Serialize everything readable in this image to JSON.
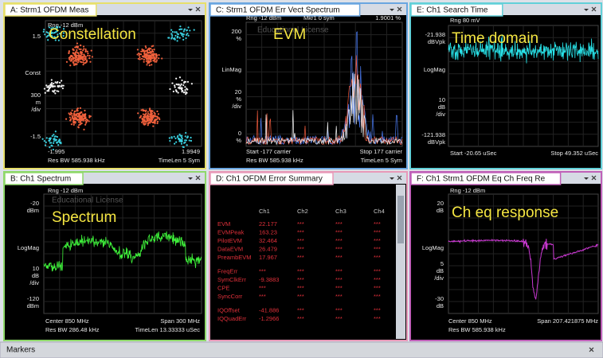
{
  "panels": {
    "a": {
      "title": "A: Strm1 OFDM Meas",
      "overlay": "Constellation",
      "labels": [
        "Rng -12 dBm",
        "1.5",
        "Const",
        "300",
        "m",
        "/div",
        "-1.5",
        "-1.995",
        "1.9949",
        "Res BW 585.938 kHz",
        "TimeLen 5  Sym"
      ]
    },
    "c": {
      "title": "C: Strm1 OFDM Err Vect Spectrum",
      "overlay": "EVM",
      "watermark": "Educational License",
      "labels": [
        "Rng -12 dBm",
        "Mkr1  0 sym",
        "1.9001 %",
        "200",
        "%",
        "LinMag",
        "20",
        "%",
        "/div",
        "0",
        "%",
        "Start -177  carrier",
        "Stop 177  carrier",
        "Res BW 585.938 kHz",
        "TimeLen 5  Sym"
      ]
    },
    "e": {
      "title": "E: Ch1 Search Time",
      "overlay": "Time domain",
      "labels": [
        "Rng 80 mV",
        "-21.938",
        "dBVpk",
        "LogMag",
        "10",
        "dB",
        "/div",
        "-121.938",
        "dBVpk",
        "Start -20.65 uSec",
        "Stop 49.352 uSec"
      ]
    },
    "b": {
      "title": "B: Ch1 Spectrum",
      "overlay": "Spectrum",
      "watermark": "Educational License",
      "labels": [
        "Rng -12 dBm",
        "-20",
        "dBm",
        "LogMag",
        "10",
        "dB",
        "/div",
        "-120",
        "dBm",
        "Center 850 MHz",
        "Span 300 MHz",
        "Res BW 286.48 kHz",
        "TimeLen 13.33333 uSec"
      ]
    },
    "d": {
      "title": "D: Ch1 OFDM Error Summary"
    },
    "f": {
      "title": "F: Ch1 Strm1 OFDM Eq Ch Freq Re",
      "overlay": "Ch eq  response",
      "labels": [
        "Rng -12 dBm",
        "20",
        "dB",
        "LogMag",
        "5",
        "dB",
        "/div",
        "-30",
        "dB",
        "Center 850 MHz",
        "Span 207.421875 MHz",
        "Res BW 585.938 kHz"
      ]
    }
  },
  "table": {
    "columns": [
      "Ch1",
      "Ch2",
      "Ch3",
      "Ch4"
    ],
    "groups": [
      [
        [
          "EVM",
          "22.177",
          "***",
          "***",
          "***"
        ],
        [
          "EVMPeak",
          "163.23",
          "***",
          "***",
          "***"
        ],
        [
          "PilotEVM",
          "32.464",
          "***",
          "***",
          "***"
        ],
        [
          "DataEVM",
          "26.479",
          "***",
          "***",
          "***"
        ],
        [
          "PreambEVM",
          "17.967",
          "***",
          "***",
          "***"
        ]
      ],
      [
        [
          "FreqErr",
          "***",
          "***",
          "***",
          "***"
        ],
        [
          "SymClkErr",
          "-9.3883",
          "***",
          "***",
          "***"
        ],
        [
          "CPE",
          "***",
          "***",
          "***",
          "***"
        ],
        [
          "SyncCorr",
          "***",
          "***",
          "***",
          "***"
        ]
      ],
      [
        [
          "IQOffset",
          "-41.886",
          "***",
          "***",
          "***"
        ],
        [
          "IQQuadErr",
          "-1.2966",
          "***",
          "***",
          "***"
        ]
      ]
    ]
  },
  "markers": "Markers"
}
